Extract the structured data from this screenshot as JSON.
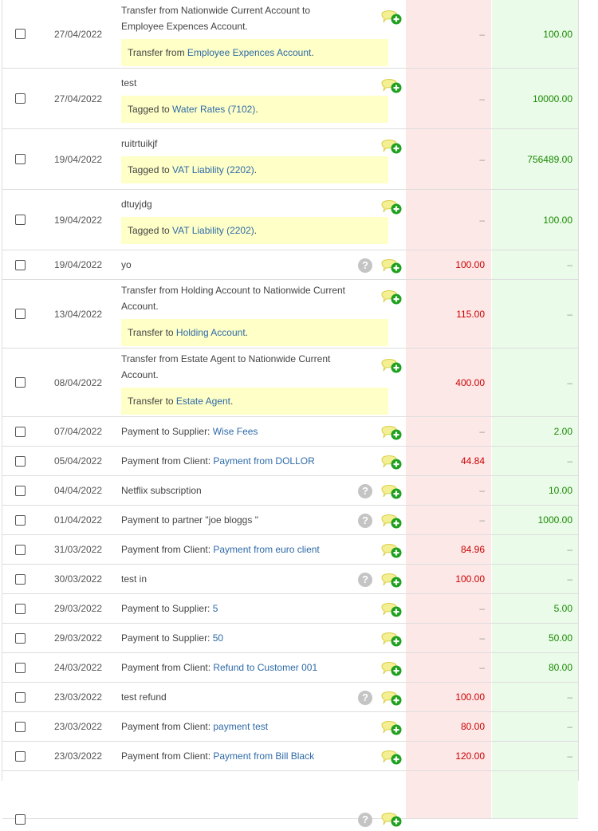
{
  "icons": {
    "note_add": "comment-add-icon",
    "help": "question-mark-icon",
    "checkbox": "checkbox-icon"
  },
  "colors": {
    "debit_bg": "#fde8e8",
    "credit_bg": "#eafbea",
    "note_bg": "#ffffc8",
    "link": "#2e6aa8",
    "debit_text": "#c00",
    "credit_text": "#1a8a00"
  },
  "rows": [
    {
      "date": "27/04/2022",
      "desc_lines": [
        "Transfer from Nationwide Current Account to",
        "Employee Expences Account."
      ],
      "note_prefix": "Transfer from ",
      "note_link": "Employee Expences Account",
      "note_suffix": ".",
      "debit": "–",
      "credit": "100.00"
    },
    {
      "date": "27/04/2022",
      "desc_lines": [
        "test"
      ],
      "note_prefix": "Tagged to ",
      "note_link": "Water Rates (7102)",
      "note_suffix": ".",
      "debit": "–",
      "credit": "10000.00"
    },
    {
      "date": "19/04/2022",
      "desc_lines": [
        "ruitrtuikjf"
      ],
      "note_prefix": "Tagged to ",
      "note_link": "VAT Liability (2202)",
      "note_suffix": ".",
      "debit": "–",
      "credit": "756489.00"
    },
    {
      "date": "19/04/2022",
      "desc_lines": [
        "dtuyjdg"
      ],
      "note_prefix": "Tagged to ",
      "note_link": "VAT Liability (2202)",
      "note_suffix": ".",
      "debit": "–",
      "credit": "100.00"
    },
    {
      "date": "19/04/2022",
      "desc": "yo",
      "help": true,
      "debit": "100.00",
      "credit": "–"
    },
    {
      "date": "13/04/2022",
      "desc_lines": [
        "Transfer from Holding Account to Nationwide Current",
        "Account."
      ],
      "note_prefix": "Transfer to ",
      "note_link": "Holding Account",
      "note_suffix": ".",
      "debit": "115.00",
      "credit": "–"
    },
    {
      "date": "08/04/2022",
      "desc_lines": [
        "Transfer from Estate Agent to Nationwide Current",
        "Account."
      ],
      "note_prefix": "Transfer to ",
      "note_link": "Estate Agent",
      "note_suffix": ".",
      "debit": "400.00",
      "credit": "–"
    },
    {
      "date": "07/04/2022",
      "desc": "Payment to Supplier: ",
      "link": "Wise Fees",
      "debit": "–",
      "credit": "2.00"
    },
    {
      "date": "05/04/2022",
      "desc": "Payment from Client: ",
      "link": "Payment from DOLLOR",
      "debit": "44.84",
      "credit": "–"
    },
    {
      "date": "04/04/2022",
      "desc": "Netflix subscription",
      "help": true,
      "debit": "–",
      "credit": "10.00"
    },
    {
      "date": "01/04/2022",
      "desc": "Payment to partner \"joe bloggs \"",
      "help": true,
      "debit": "–",
      "credit": "1000.00"
    },
    {
      "date": "31/03/2022",
      "desc": "Payment from Client: ",
      "link": "Payment from euro client",
      "debit": "84.96",
      "credit": "–"
    },
    {
      "date": "30/03/2022",
      "desc": "test in",
      "help": true,
      "debit": "100.00",
      "credit": "–"
    },
    {
      "date": "29/03/2022",
      "desc": "Payment to Supplier: ",
      "link": "5",
      "debit": "–",
      "credit": "5.00"
    },
    {
      "date": "29/03/2022",
      "desc": "Payment to Supplier: ",
      "link": "50",
      "debit": "–",
      "credit": "50.00"
    },
    {
      "date": "24/03/2022",
      "desc": "Payment from Client: ",
      "link": "Refund to Customer 001",
      "debit": "–",
      "credit": "80.00"
    },
    {
      "date": "23/03/2022",
      "desc": "test refund",
      "help": true,
      "debit": "100.00",
      "credit": "–"
    },
    {
      "date": "23/03/2022",
      "desc": "Payment from Client: ",
      "link": "payment test",
      "debit": "80.00",
      "credit": "–"
    },
    {
      "date": "23/03/2022",
      "desc": "Payment from Client: ",
      "link": "Payment from Bill Black",
      "debit": "120.00",
      "credit": "–"
    },
    {
      "date": "",
      "desc": "",
      "help": true,
      "debit": "",
      "credit": ""
    }
  ]
}
